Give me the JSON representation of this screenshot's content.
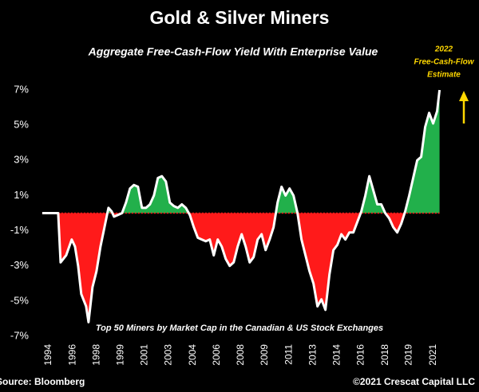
{
  "chart_data": {
    "type": "area",
    "title": "Gold & Silver Miners",
    "subtitle": "Aggregate Free-Cash-Flow Yield With Enterprise Value",
    "annotation": [
      "2022",
      "Free-Cash-Flow",
      "Estimate"
    ],
    "note": "Top 50 Miners by Market Cap in the Canadian & US Stock Exchanges",
    "source": "Source: Bloomberg",
    "credit": "©2021 Crescat Capital LLC",
    "positive_color": "#22b04b",
    "negative_color": "#ff1a1a",
    "line_color": "#ffffff",
    "x": [
      1993.55,
      1994.67,
      1994.84,
      1995.23,
      1995.62,
      1995.85,
      1996.07,
      1996.29,
      1996.63,
      1996.8,
      1997.08,
      1997.36,
      1997.64,
      1997.92,
      1998.2,
      1998.42,
      1998.59,
      1998.87,
      1999.15,
      1999.43,
      1999.71,
      1999.99,
      2000.27,
      2000.55,
      2000.83,
      2001.11,
      2001.39,
      2001.67,
      2001.95,
      2002.23,
      2002.51,
      2002.79,
      2003.07,
      2003.35,
      2003.63,
      2003.91,
      2004.19,
      2004.47,
      2004.75,
      2005.03,
      2005.31,
      2005.59,
      2005.87,
      2006.15,
      2006.43,
      2006.71,
      2006.99,
      2007.27,
      2007.55,
      2007.83,
      2008.11,
      2008.39,
      2008.67,
      2008.95,
      2009.23,
      2009.51,
      2009.79,
      2010.07,
      2010.35,
      2010.63,
      2010.91,
      2011.19,
      2011.47,
      2011.75,
      2012.03,
      2012.31,
      2012.59,
      2012.87,
      2013.15,
      2013.43,
      2013.71,
      2013.99,
      2014.27,
      2014.55,
      2014.83,
      2015.11,
      2015.39,
      2015.67,
      2015.95,
      2016.23,
      2016.51,
      2016.79,
      2017.07,
      2017.35,
      2017.63,
      2017.91,
      2018.19,
      2018.47,
      2018.75,
      2019.03,
      2019.31,
      2019.59,
      2019.87,
      2020.15,
      2020.43,
      2020.71,
      2020.99,
      2021.27,
      2021.44
    ],
    "values": [
      0,
      0,
      -2.8,
      -2.4,
      -1.5,
      -1.9,
      -3.0,
      -4.6,
      -5.3,
      -6.2,
      -4.2,
      -3.3,
      -1.9,
      -0.8,
      0.3,
      0.1,
      -0.2,
      -0.1,
      0,
      0.6,
      1.4,
      1.6,
      1.5,
      0.3,
      0.3,
      0.5,
      1.0,
      2.0,
      2.1,
      1.8,
      0.6,
      0.4,
      0.3,
      0.5,
      0.3,
      -0.1,
      -0.8,
      -1.4,
      -1.5,
      -1.6,
      -1.5,
      -2.4,
      -1.5,
      -1.9,
      -2.6,
      -3.0,
      -2.8,
      -1.9,
      -1.2,
      -1.9,
      -2.8,
      -2.5,
      -1.5,
      -1.2,
      -2.1,
      -1.5,
      -0.8,
      0.6,
      1.5,
      1.0,
      1.4,
      1.0,
      0,
      -1.5,
      -2.4,
      -3.3,
      -4.0,
      -5.3,
      -4.9,
      -5.5,
      -3.5,
      -2.1,
      -1.8,
      -1.2,
      -1.5,
      -1.1,
      -1.1,
      -0.5,
      0.1,
      1.0,
      2.1,
      1.3,
      0.5,
      0.5,
      0,
      -0.3,
      -0.8,
      -1.1,
      -0.6,
      0.1,
      1.0,
      2.0,
      3.0,
      3.2,
      4.9,
      5.7,
      5.1,
      5.8,
      7.0
    ],
    "xlim": [
      1993.5,
      2021.8
    ],
    "xticks": [
      {
        "value": 1994,
        "label": "1994"
      },
      {
        "value": 1995.69,
        "label": "1996"
      },
      {
        "value": 1997.38,
        "label": "1998"
      },
      {
        "value": 1999.06,
        "label": "1999"
      },
      {
        "value": 2000.75,
        "label": "2001"
      },
      {
        "value": 2002.44,
        "label": "2003"
      },
      {
        "value": 2004.13,
        "label": "2004"
      },
      {
        "value": 2005.81,
        "label": "2006"
      },
      {
        "value": 2007.5,
        "label": "2008"
      },
      {
        "value": 2009.19,
        "label": "2009"
      },
      {
        "value": 2010.88,
        "label": "2011"
      },
      {
        "value": 2012.56,
        "label": "2013"
      },
      {
        "value": 2014.25,
        "label": "2014"
      },
      {
        "value": 2015.94,
        "label": "2016"
      },
      {
        "value": 2017.63,
        "label": "2018"
      },
      {
        "value": 2019.31,
        "label": "2019"
      },
      {
        "value": 2021,
        "label": "2021"
      }
    ],
    "ylim": [
      -7,
      7
    ],
    "yticks": [
      {
        "value": 7,
        "label": "7%"
      },
      {
        "value": 5,
        "label": "5%"
      },
      {
        "value": 3,
        "label": "3%"
      },
      {
        "value": 1,
        "label": "1%"
      },
      {
        "value": -1,
        "label": "-1%"
      },
      {
        "value": -3,
        "label": "-3%"
      },
      {
        "value": -5,
        "label": "-5%"
      },
      {
        "value": -7,
        "label": "-7%"
      }
    ]
  }
}
